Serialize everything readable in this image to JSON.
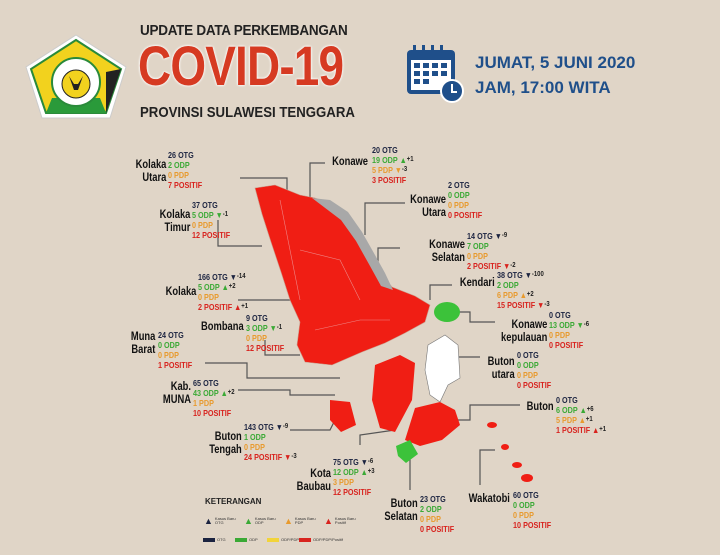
{
  "header": {
    "line1": "UPDATE DATA PERKEMBANGAN",
    "title": "COVID-19",
    "line3": "PROVINSI SULAWESI TENGGARA",
    "logo_text": "SULAWESI TENGGARA",
    "date": "JUMAT, 5 JUNI 2020",
    "time": "JAM, 17:00 WITA",
    "calendar_icon": "calendar-clock-icon"
  },
  "labels": {
    "otg": "OTG",
    "odp": "ODP",
    "pdp": "PDP",
    "pos": "POSITIF"
  },
  "colors": {
    "background": "#e0d5c7",
    "otg": "#1b2340",
    "odp": "#3aa935",
    "pdp": "#e89a2d",
    "positif": "#d8231e",
    "title": "#d63a22",
    "date": "#1f4f8a",
    "no_case": "#ffffff",
    "otg_only": "#a9a9a9"
  },
  "regions": [
    {
      "name": [
        "Kolaka",
        "Utara"
      ],
      "otg": "26",
      "odp": "2",
      "pdp": "0",
      "pos": "7"
    },
    {
      "name": [
        "Kolaka",
        "Timur"
      ],
      "otg": "37",
      "odp": "5",
      "pdp": "0",
      "pos": "12",
      "odp_change": {
        "dir": "down",
        "delta": "-1"
      }
    },
    {
      "name": [
        "Kolaka"
      ],
      "otg": "166",
      "odp": "5",
      "pdp": "0",
      "pos": "2",
      "otg_change": {
        "dir": "down",
        "delta": "-14"
      },
      "odp_change": {
        "dir": "up",
        "delta": "+2"
      },
      "pos_change": {
        "dir": "up",
        "delta": "+1"
      }
    },
    {
      "name": [
        "Bombana"
      ],
      "otg": "9",
      "odp": "3",
      "pdp": "0",
      "pos": "12",
      "odp_change": {
        "dir": "down",
        "delta": "-1"
      }
    },
    {
      "name": [
        "Muna",
        "Barat"
      ],
      "otg": "24",
      "odp": "0",
      "pdp": "0",
      "pos": "1"
    },
    {
      "name": [
        "Kab.",
        "MUNA"
      ],
      "otg": "65",
      "odp": "43",
      "pdp": "1",
      "pos": "10",
      "odp_change": {
        "dir": "up",
        "delta": "+2"
      }
    },
    {
      "name": [
        "Buton",
        "Tengah"
      ],
      "otg": "143",
      "odp": "1",
      "pdp": "0",
      "pos": "24",
      "otg_change": {
        "dir": "down",
        "delta": "-9"
      },
      "pos_change": {
        "dir": "down",
        "delta": "-3"
      }
    },
    {
      "name": [
        "Kota",
        "Baubau"
      ],
      "otg": "75",
      "odp": "12",
      "pdp": "3",
      "pos": "12",
      "otg_change": {
        "dir": "down",
        "delta": "-6"
      },
      "odp_change": {
        "dir": "up",
        "delta": "+3"
      }
    },
    {
      "name": [
        "Buton",
        "Selatan"
      ],
      "otg": "23",
      "odp": "2",
      "pdp": "0",
      "pos": "0"
    },
    {
      "name": [
        "Wakatobi"
      ],
      "otg": "60",
      "odp": "0",
      "pdp": "0",
      "pos": "10"
    },
    {
      "name": [
        "Konawe"
      ],
      "otg": "20",
      "odp": "19",
      "pdp": "5",
      "pos": "3",
      "odp_change": {
        "dir": "up",
        "delta": "+1"
      },
      "pdp_change": {
        "dir": "down",
        "delta": "-3"
      }
    },
    {
      "name": [
        "Konawe",
        "Utara"
      ],
      "otg": "2",
      "odp": "0",
      "pdp": "0",
      "pos": "0"
    },
    {
      "name": [
        "Konawe",
        "Selatan"
      ],
      "otg": "14",
      "odp": "7",
      "pdp": "0",
      "pos": "2",
      "otg_change": {
        "dir": "down",
        "delta": "-9"
      },
      "pos_change": {
        "dir": "down",
        "delta": "-2"
      }
    },
    {
      "name": [
        "Kendari"
      ],
      "otg": "38",
      "odp": "2",
      "pdp": "6",
      "pos": "15",
      "otg_change": {
        "dir": "down",
        "delta": "-100"
      },
      "pdp_change": {
        "dir": "up",
        "delta": "+2"
      },
      "pos_change": {
        "dir": "down",
        "delta": "-3"
      }
    },
    {
      "name": [
        "Konawe",
        "kepulauan"
      ],
      "otg": "0",
      "odp": "13",
      "pdp": "0",
      "pos": "0",
      "odp_change": {
        "dir": "down",
        "delta": "-6"
      }
    },
    {
      "name": [
        "Buton",
        "utara"
      ],
      "otg": "0",
      "odp": "0",
      "pdp": "0",
      "pos": "0"
    },
    {
      "name": [
        "Buton"
      ],
      "otg": "0",
      "odp": "6",
      "pdp": "5",
      "pos": "1",
      "odp_change": {
        "dir": "up",
        "delta": "+6"
      },
      "pdp_change": {
        "dir": "up",
        "delta": "+1"
      },
      "pos_change": {
        "dir": "up",
        "delta": "+1"
      }
    }
  ],
  "legend": {
    "title": "KETERANGAN",
    "arrows": [
      {
        "label": "Kasus Baru OTG",
        "color": "#1b2340"
      },
      {
        "label": "Kasus Baru ODP",
        "color": "#3aa935"
      },
      {
        "label": "Kasus Baru PDP",
        "color": "#e89a2d"
      },
      {
        "label": "Kasus Baru Positif",
        "color": "#d8231e"
      }
    ],
    "swatches": [
      {
        "label": "OTG",
        "color": "#1b2340"
      },
      {
        "label": "ODP",
        "color": "#3aa935"
      },
      {
        "label": "ODP/PDP",
        "color": "#f2d43a"
      },
      {
        "label": "ODP/PDP/Positif",
        "color": "#d8231e"
      }
    ]
  }
}
